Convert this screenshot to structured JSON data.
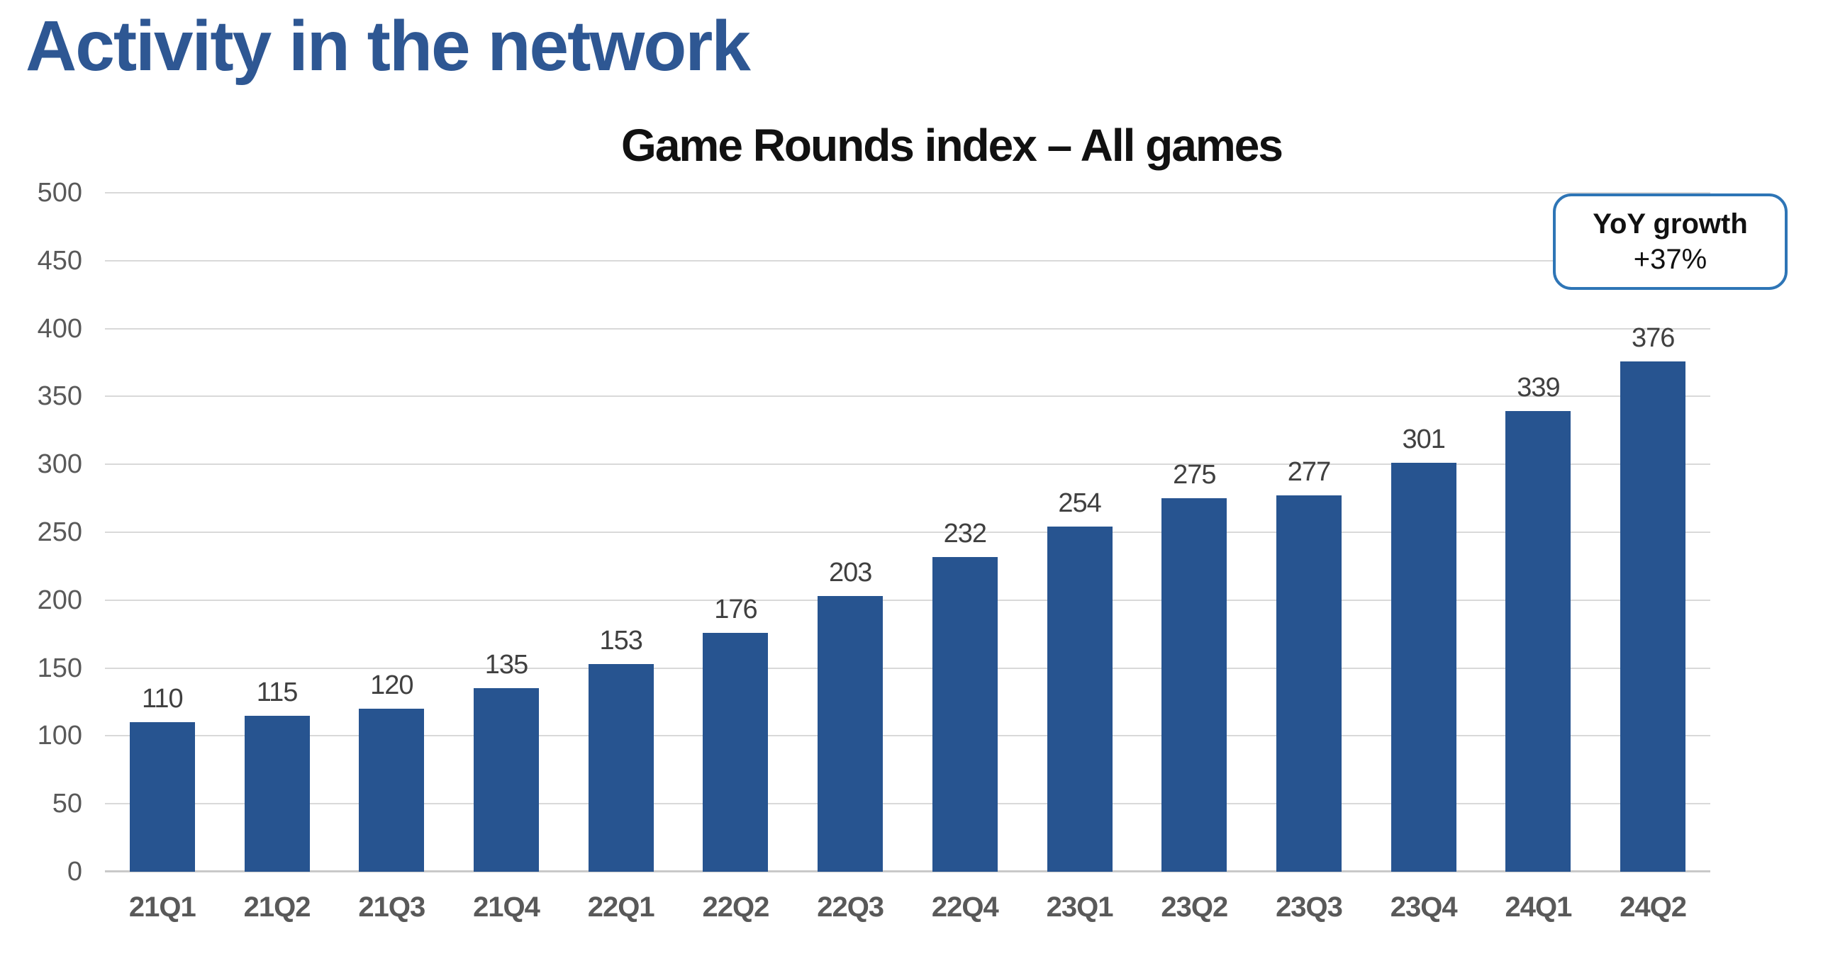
{
  "page_title": "Activity in the network",
  "chart": {
    "title": "Game Rounds index – All games",
    "callout": {
      "line1": "YoY growth",
      "line2": "+37%"
    }
  },
  "chart_data": {
    "type": "bar",
    "title": "Game Rounds index – All games",
    "categories": [
      "21Q1",
      "21Q2",
      "21Q3",
      "21Q4",
      "22Q1",
      "22Q2",
      "22Q3",
      "22Q4",
      "23Q1",
      "23Q2",
      "23Q3",
      "23Q4",
      "24Q1",
      "24Q2"
    ],
    "values": [
      110,
      115,
      120,
      135,
      153,
      176,
      203,
      232,
      254,
      275,
      277,
      301,
      339,
      376
    ],
    "xlabel": "",
    "ylabel": "",
    "ylim": [
      0,
      500
    ],
    "yticks": [
      0,
      50,
      100,
      150,
      200,
      250,
      300,
      350,
      400,
      450,
      500
    ],
    "grid": true,
    "legend": false,
    "annotation": "YoY growth +37%"
  },
  "colors": {
    "bar": "#275490",
    "title": "#2E5793",
    "grid": "#D9D9D9",
    "axis": "#C9C9C9",
    "tick": "#595959",
    "data_label": "#404040",
    "callout_border": "#2E75B6"
  }
}
